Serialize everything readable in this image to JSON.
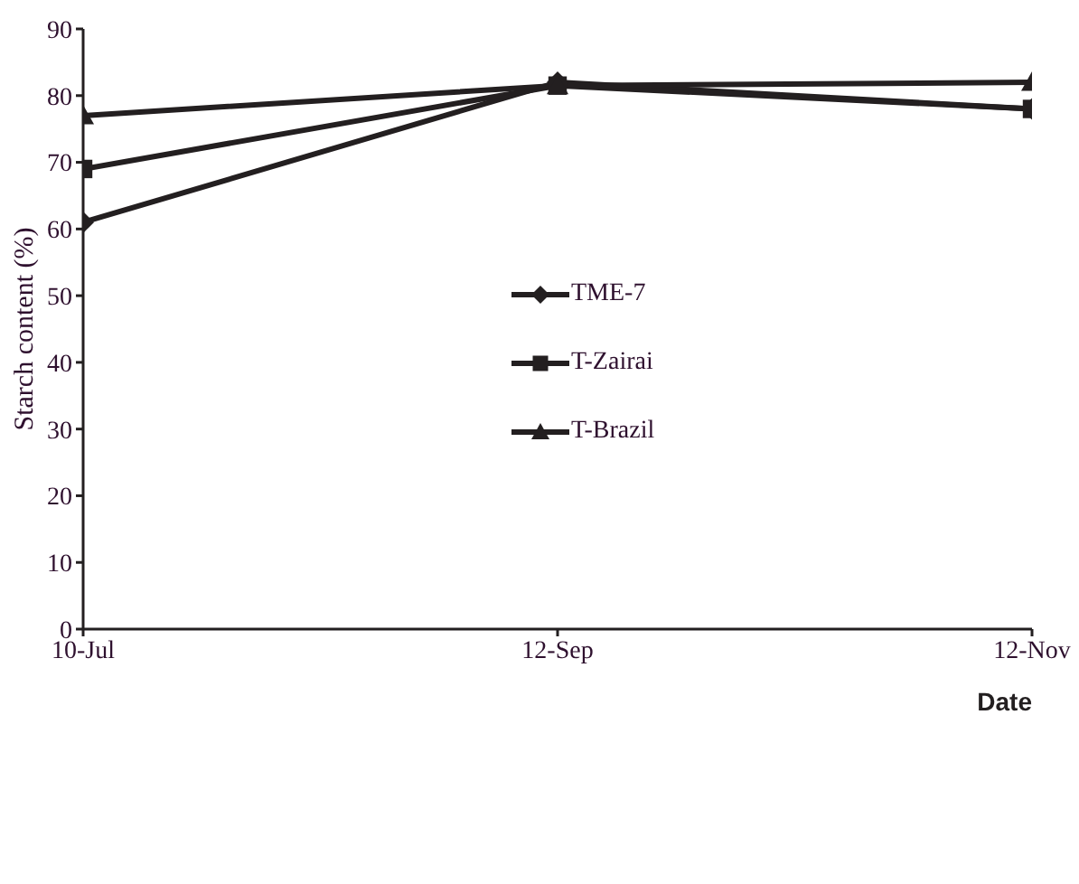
{
  "chart_data": {
    "type": "line",
    "xlabel": "Date",
    "ylabel": "Starch content (%)",
    "categories": [
      "10-Jul",
      "12-Sep",
      "12-Nov"
    ],
    "series": [
      {
        "name": "TME-7",
        "color": "#231f20",
        "marker": "diamond",
        "values": [
          61,
          82,
          78
        ]
      },
      {
        "name": "T-Zairai",
        "color": "#231f20",
        "marker": "square",
        "values": [
          69,
          81.5,
          78
        ]
      },
      {
        "name": "T-Brazil",
        "color": "#231f20",
        "marker": "triangle",
        "values": [
          77,
          81.5,
          82
        ]
      }
    ],
    "ylim": [
      0,
      90
    ],
    "yticks": [
      0,
      10,
      20,
      30,
      40,
      50,
      60,
      70,
      80,
      90
    ],
    "grid": false,
    "legend": "center",
    "line_style": "solid"
  }
}
